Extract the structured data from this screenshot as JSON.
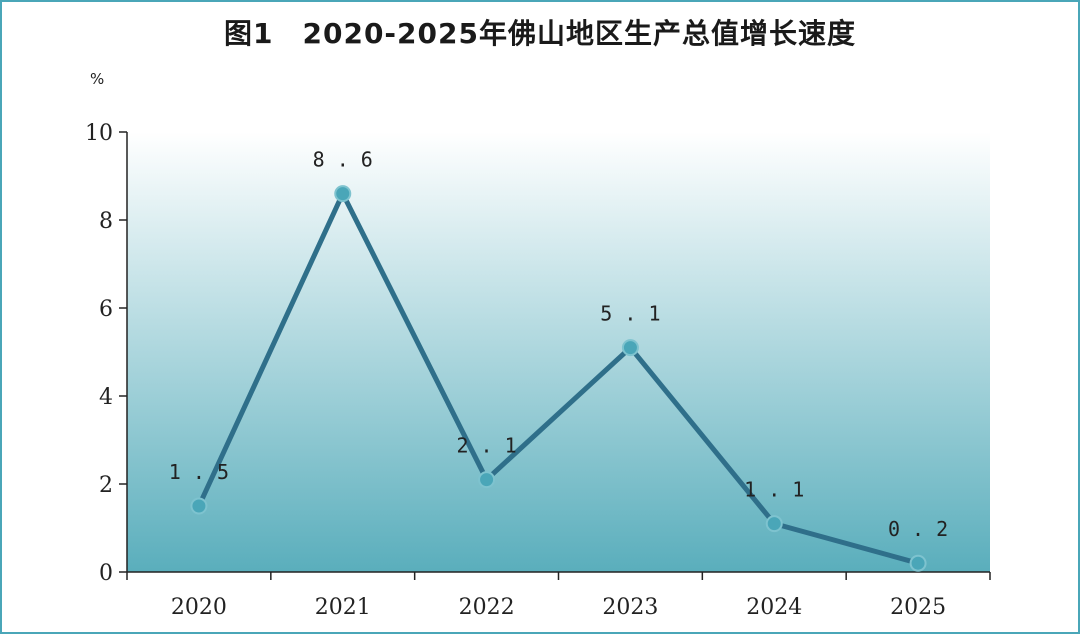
{
  "title": "图1　2020-2025年佛山地区生产总值增长速度",
  "chart_data": {
    "type": "line",
    "title": "图1　2020-2025年佛山地区生产总值增长速度",
    "ylabel": "%",
    "categories": [
      "2020",
      "2021",
      "2022",
      "2023",
      "2024",
      "2025"
    ],
    "series": [
      {
        "values": [
          1.5,
          8.6,
          2.1,
          5.1,
          1.1,
          0.2
        ]
      }
    ],
    "data_labels": [
      "1.5",
      "8.6",
      "2.1",
      "5.1",
      "1.1",
      "0.2"
    ],
    "ylim": [
      0,
      10
    ],
    "yticks": [
      0,
      2,
      4,
      6,
      8,
      10
    ],
    "grid": false,
    "legend": "none",
    "colors": {
      "line": "#2f6f8a",
      "marker": "#4aa6b8",
      "axis": "#222222",
      "gradient_top": "#ffffff",
      "gradient_bottom": "#5aaebc",
      "border": "#4aa6b8"
    }
  }
}
